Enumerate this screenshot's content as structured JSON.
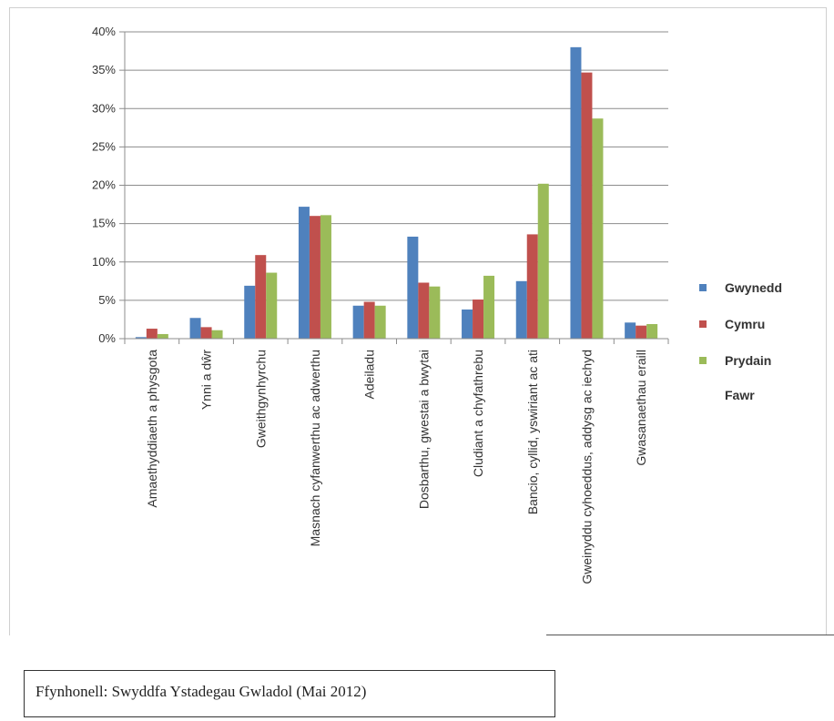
{
  "chart_data": {
    "type": "bar",
    "categories": [
      "Amaethyddiaeth a physgota",
      "Ynni a dŵr",
      "Gweithgynhyrchu",
      "Masnach cyfanwerthu ac adwerthu",
      "Adeiladu",
      "Dosbarthu, gwestai a bwytai",
      "Cludiant a chyfathrebu",
      "Bancio, cyllid, yswiriant ac ati",
      "Gweinyddu cyhoeddus, addysg ac iechyd",
      "Gwasanaethau eraill"
    ],
    "series": [
      {
        "name": "Gwynedd",
        "color": "#4f81bd",
        "values": [
          0.2,
          2.7,
          6.9,
          17.2,
          4.3,
          13.3,
          3.8,
          7.5,
          38.0,
          2.1
        ]
      },
      {
        "name": "Cymru",
        "color": "#c0504d",
        "values": [
          1.3,
          1.5,
          10.9,
          16.0,
          4.8,
          7.3,
          5.1,
          13.6,
          34.7,
          1.7
        ]
      },
      {
        "name": "Prydain Fawr",
        "color": "#9bbb59",
        "values": [
          0.6,
          1.1,
          8.6,
          16.1,
          4.3,
          6.8,
          8.2,
          20.2,
          28.7,
          1.9
        ]
      }
    ],
    "yticks": [
      "0%",
      "5%",
      "10%",
      "15%",
      "20%",
      "25%",
      "30%",
      "35%",
      "40%"
    ],
    "ylim": [
      0,
      40
    ],
    "grid": true,
    "legend": "right",
    "legend_lines": [
      [
        "Gwynedd"
      ],
      [
        "Cymru"
      ],
      [
        "Prydain",
        "Fawr"
      ]
    ],
    "title": "",
    "xlabel": "",
    "ylabel": ""
  },
  "source": {
    "text": "Ffynhonell: Swyddfa Ystadegau Gwladol (Mai 2012)"
  }
}
